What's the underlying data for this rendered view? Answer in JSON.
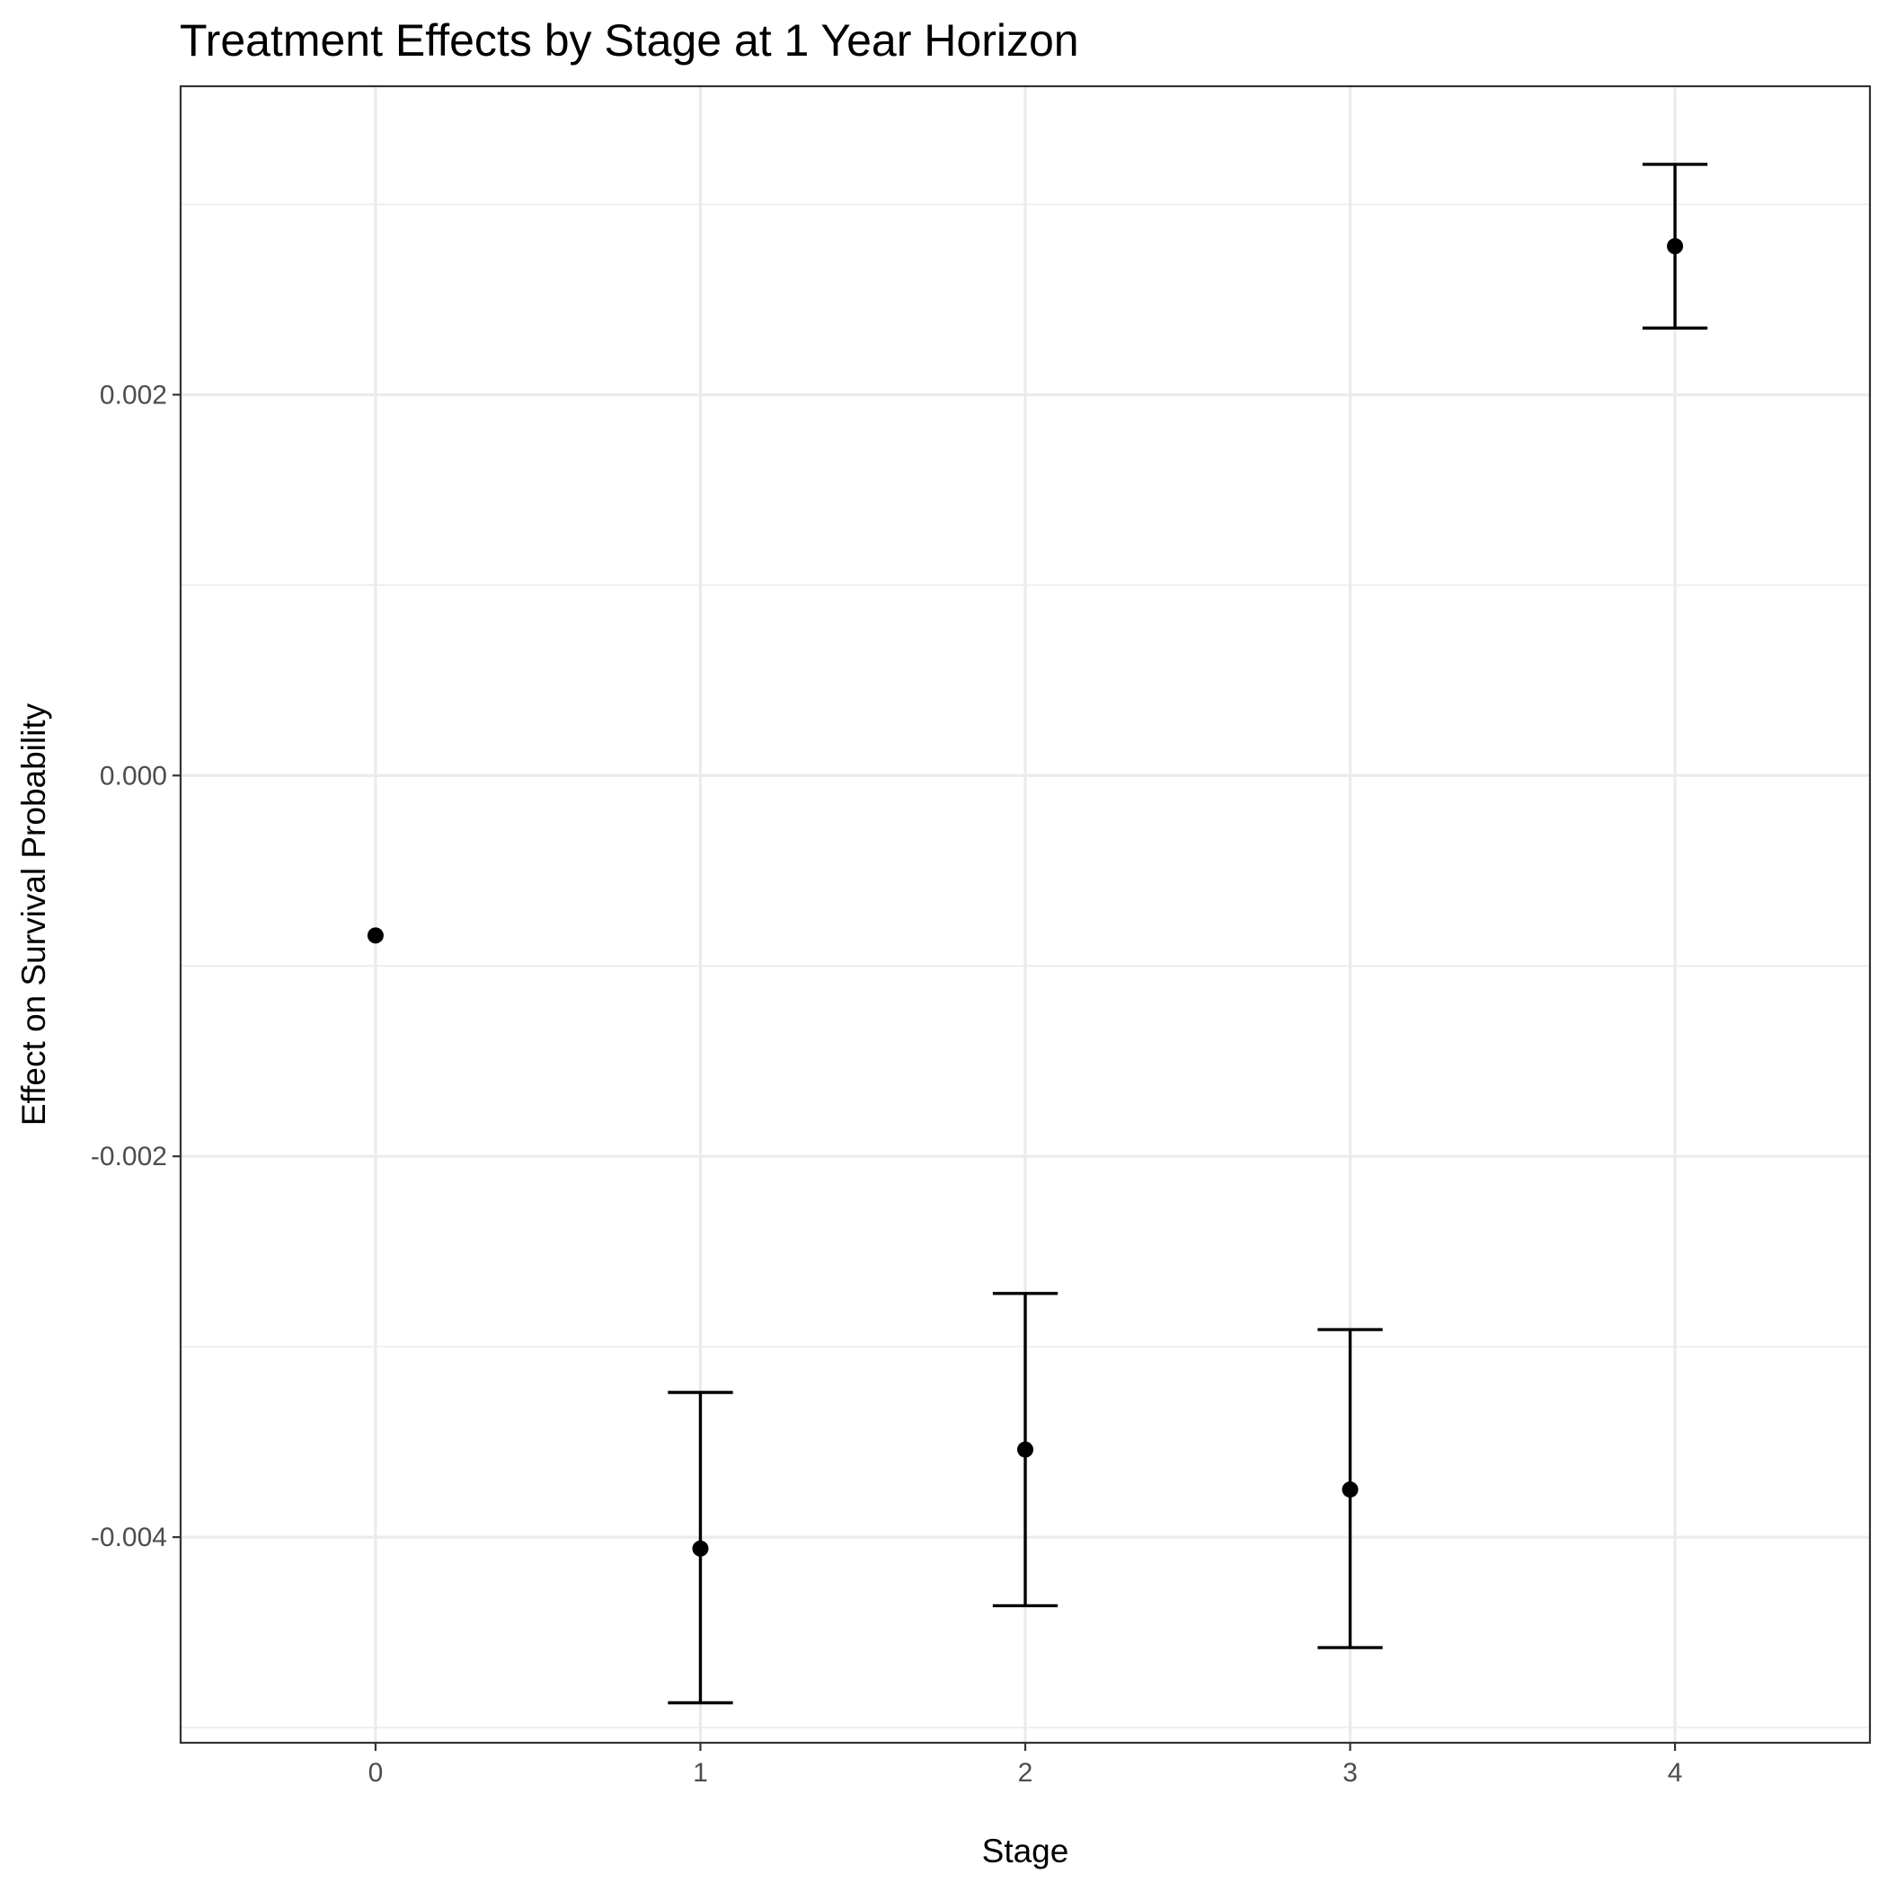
{
  "chart_data": {
    "type": "scatter",
    "title": "Treatment Effects by Stage at 1 Year Horizon",
    "xlabel": "Stage",
    "ylabel": "Effect on Survival Probability",
    "x_ticks": [
      "0",
      "1",
      "2",
      "3",
      "4"
    ],
    "y_ticks": [
      "-0.004",
      "-0.002",
      "0.000",
      "0.002"
    ],
    "y_tick_values": [
      -0.004,
      -0.002,
      0.0,
      0.002
    ],
    "xlim": [
      -0.6,
      4.6
    ],
    "ylim": [
      -0.00508,
      0.00362
    ],
    "grid": true,
    "series": [
      {
        "points": [
          {
            "x": 0,
            "y": -0.00084,
            "lower": null,
            "upper": null
          },
          {
            "x": 1,
            "y": -0.00406,
            "lower": -0.00487,
            "upper": -0.00324
          },
          {
            "x": 2,
            "y": -0.00354,
            "lower": -0.00436,
            "upper": -0.00272
          },
          {
            "x": 3,
            "y": -0.00375,
            "lower": -0.00458,
            "upper": -0.00291
          },
          {
            "x": 4,
            "y": 0.00278,
            "lower": 0.00235,
            "upper": 0.00321
          }
        ],
        "color": "#000000"
      }
    ],
    "colors": {
      "panel_border": "#333333",
      "grid": "#ebebeb",
      "tick_label": "#4d4d4d",
      "point": "#000000"
    }
  }
}
